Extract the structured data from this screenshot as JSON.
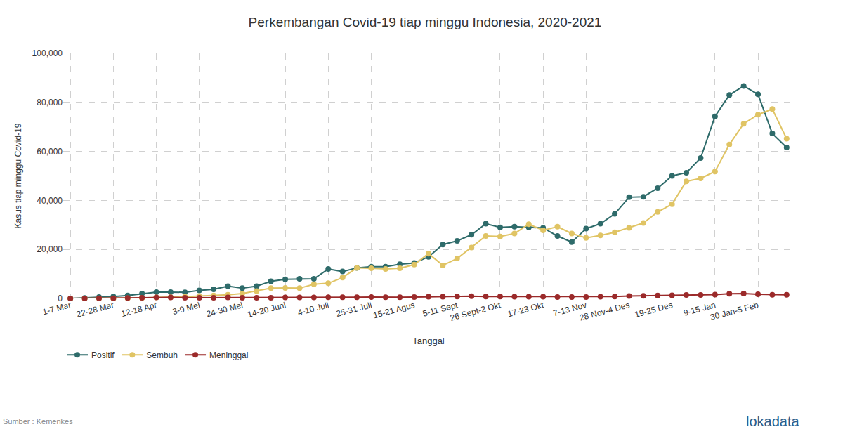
{
  "chart_data": {
    "type": "line",
    "title": "Perkembangan Covid-19 tiap minggu Indonesia, 2020-2021",
    "x_label": "Tanggal",
    "y_label": "Kasus tiap minggu Covid-19",
    "categories": [
      "1-7 Mar",
      null,
      null,
      "22-28 Mar",
      null,
      null,
      "12-18 Apr",
      null,
      null,
      "3-9 Mei",
      null,
      null,
      "24-30 Mei",
      null,
      null,
      "14-20 Juni",
      null,
      null,
      "4-10 Juli",
      null,
      null,
      "25-31 Juli",
      null,
      null,
      "15-21 Agus",
      null,
      null,
      "5-11 Sept",
      null,
      null,
      "26 Sept-2 Okt",
      null,
      null,
      "17-23 Okt",
      null,
      null,
      "7-13 Nov",
      null,
      null,
      "28 Nov-4 Des",
      null,
      null,
      "19-25 Des",
      null,
      null,
      "9-15 Jan",
      null,
      null,
      "30 Jan-5 Feb",
      null,
      null
    ],
    "series": [
      {
        "name": "Positif",
        "color": "#2e6b6a",
        "marker": "circle",
        "line_style": "solid",
        "values": [
          0,
          200,
          600,
          800,
          1200,
          2000,
          2600,
          2600,
          2500,
          3300,
          3700,
          5000,
          4200,
          5000,
          7000,
          7800,
          8000,
          8000,
          12000,
          11000,
          12500,
          13000,
          13000,
          14000,
          14500,
          17000,
          22000,
          23500,
          26000,
          30500,
          29000,
          29300,
          29000,
          28800,
          25500,
          23000,
          28500,
          30500,
          34500,
          41300,
          41500,
          45000,
          50000,
          51300,
          57300,
          74300,
          83000,
          86700,
          83300,
          67300,
          61600
        ]
      },
      {
        "name": "Sembuh",
        "color": "#e0c464",
        "marker": "circle",
        "line_style": "solid",
        "values": [
          0,
          0,
          0,
          0,
          100,
          200,
          400,
          500,
          700,
          1000,
          1200,
          1500,
          2000,
          3000,
          4200,
          4300,
          4200,
          5800,
          6200,
          8500,
          12500,
          12300,
          12000,
          12300,
          13800,
          18300,
          13500,
          16300,
          20800,
          25500,
          25300,
          26500,
          30300,
          27800,
          29300,
          26500,
          24700,
          25700,
          27000,
          28800,
          30800,
          35300,
          38500,
          47800,
          49000,
          51800,
          62800,
          71300,
          75000,
          77300,
          65200
        ]
      },
      {
        "name": "Meninggal",
        "color": "#9b2a2a",
        "marker": "circle",
        "line_style": "solid",
        "values": [
          0,
          0,
          50,
          100,
          200,
          300,
          400,
          400,
          300,
          300,
          300,
          400,
          300,
          300,
          300,
          400,
          400,
          400,
          500,
          500,
          500,
          600,
          500,
          500,
          600,
          700,
          700,
          800,
          900,
          800,
          800,
          700,
          700,
          700,
          600,
          600,
          600,
          700,
          800,
          1000,
          1100,
          1200,
          1300,
          1400,
          1400,
          1600,
          1900,
          2000,
          1700,
          1500,
          1500
        ]
      }
    ],
    "ylim": [
      0,
      100000
    ],
    "yticks": [
      0,
      {
        "value": 20000,
        "label": "20,000"
      },
      {
        "value": 40000,
        "label": "40,000"
      },
      {
        "value": 60000,
        "label": "60,000"
      },
      {
        "value": 80000,
        "label": "80,000"
      },
      {
        "value": 100000,
        "label": "100,000"
      }
    ],
    "grid": true,
    "legend": "bottom left",
    "annotations": [
      {
        "text": "Sumber : Kemenkes"
      },
      {
        "text": "lokadata"
      }
    ]
  }
}
